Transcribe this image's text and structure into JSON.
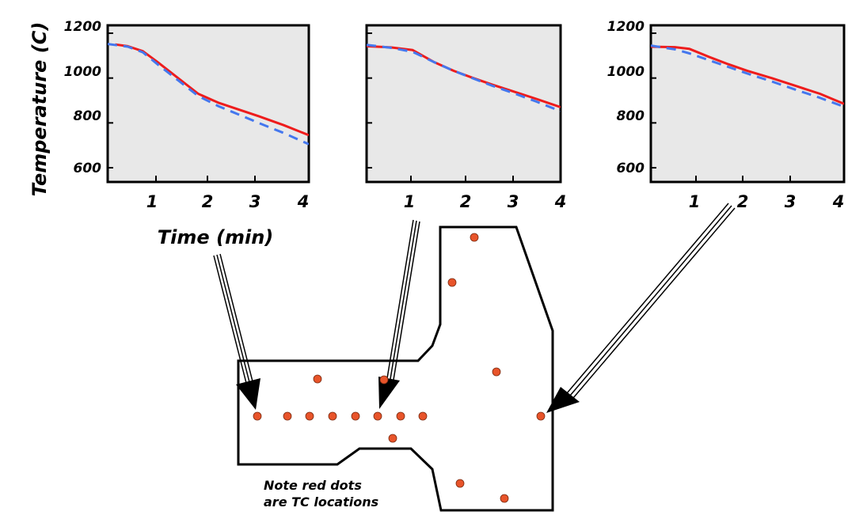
{
  "figure": {
    "ylabel": "Temperature (C)",
    "xlabel": "Time (min)",
    "note_lines": [
      "Note red dots",
      "are TC locations"
    ],
    "colors": {
      "measured": "#ee1c1c",
      "simulated": "#4477ee",
      "plot_bg": "#e8e8e8",
      "dot": "#e8542a"
    }
  },
  "chart_data": [
    {
      "type": "line",
      "xticks": [
        "1",
        "2",
        "3",
        "4"
      ],
      "yticks": [
        "1200",
        "1000",
        "800",
        "600"
      ],
      "xlim": [
        0,
        4
      ],
      "ylim": [
        535,
        1200
      ],
      "series": [
        {
          "style": "solid",
          "color": "#ee1c1c",
          "x": [
            0.15,
            0.4,
            0.7,
            1.0,
            1.4,
            1.8,
            2.2,
            2.6,
            3.0,
            3.5,
            4.0
          ],
          "y": [
            1150,
            1142,
            1120,
            1070,
            1000,
            930,
            890,
            860,
            830,
            790,
            745
          ]
        },
        {
          "style": "dashed",
          "color": "#4477ee",
          "x": [
            0.0,
            0.4,
            0.7,
            1.0,
            1.4,
            1.8,
            2.2,
            2.6,
            3.0,
            3.5,
            4.0
          ],
          "y": [
            1152,
            1140,
            1115,
            1060,
            990,
            920,
            875,
            838,
            800,
            755,
            705
          ]
        }
      ]
    },
    {
      "type": "line",
      "xticks": [
        "1",
        "2",
        "3",
        "4"
      ],
      "yticks": [],
      "xlim": [
        0,
        4
      ],
      "ylim": [
        535,
        1200
      ],
      "series": [
        {
          "style": "solid",
          "color": "#ee1c1c",
          "x": [
            0.0,
            0.5,
            0.95,
            1.4,
            1.8,
            2.2,
            2.6,
            3.0,
            3.5,
            4.0
          ],
          "y": [
            1142,
            1137,
            1125,
            1070,
            1032,
            1000,
            970,
            942,
            907,
            870
          ]
        },
        {
          "style": "dashed",
          "color": "#4477ee",
          "x": [
            0.0,
            0.5,
            0.95,
            1.4,
            1.8,
            2.2,
            2.6,
            3.0,
            3.5,
            4.0
          ],
          "y": [
            1148,
            1135,
            1117,
            1070,
            1032,
            998,
            965,
            935,
            895,
            852
          ]
        }
      ]
    },
    {
      "type": "line",
      "xticks": [
        "1",
        "2",
        "3",
        "4"
      ],
      "yticks": [
        "1200",
        "1000",
        "800",
        "600"
      ],
      "xlim": [
        0,
        4
      ],
      "ylim": [
        535,
        1200
      ],
      "series": [
        {
          "style": "solid",
          "color": "#ee1c1c",
          "x": [
            0.0,
            0.5,
            0.8,
            1.2,
            1.6,
            2.0,
            2.5,
            3.0,
            3.5,
            4.0
          ],
          "y": [
            1140,
            1138,
            1130,
            1095,
            1062,
            1032,
            1000,
            965,
            930,
            885
          ]
        },
        {
          "style": "dashed",
          "color": "#4477ee",
          "x": [
            0.0,
            0.5,
            0.8,
            1.2,
            1.6,
            2.0,
            2.5,
            3.0,
            3.5,
            4.0
          ],
          "y": [
            1145,
            1128,
            1110,
            1080,
            1050,
            1020,
            985,
            948,
            912,
            872
          ]
        }
      ]
    }
  ]
}
